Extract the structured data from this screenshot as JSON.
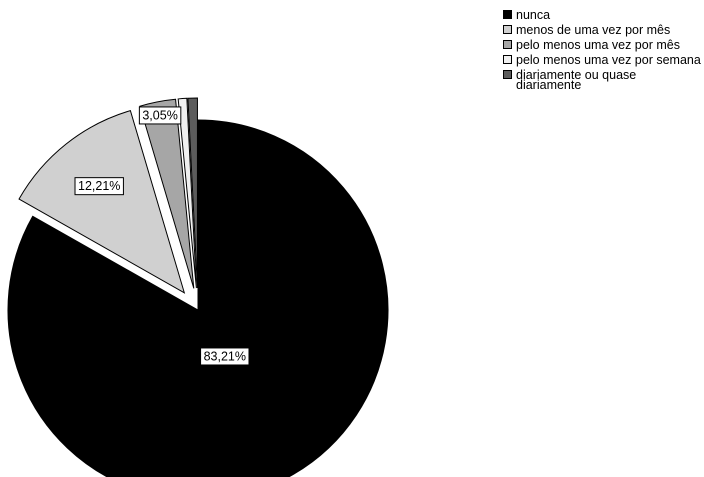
{
  "chart_data": {
    "type": "pie",
    "title": "",
    "legend_position": "top-right",
    "slices": [
      {
        "label": "nunca",
        "value": 83.21,
        "value_label": "83,21%",
        "color": "#000000",
        "exploded": false
      },
      {
        "label": "menos de uma vez por mês",
        "value": 12.21,
        "value_label": "12,21%",
        "color": "#d0d0d0",
        "exploded": true
      },
      {
        "label": "pelo menos uma vez por mês",
        "value": 3.05,
        "value_label": "3,05%",
        "color": "#a6a6a6",
        "exploded": true
      },
      {
        "label": "pelo menos uma vez por semana",
        "value": 0.73,
        "value_label": "",
        "color": "#f0f0f0",
        "exploded": true
      },
      {
        "label": "diariamente ou quase diariamente",
        "value": 0.8,
        "value_label": "",
        "color": "#5c5c5c",
        "exploded": true
      }
    ]
  }
}
